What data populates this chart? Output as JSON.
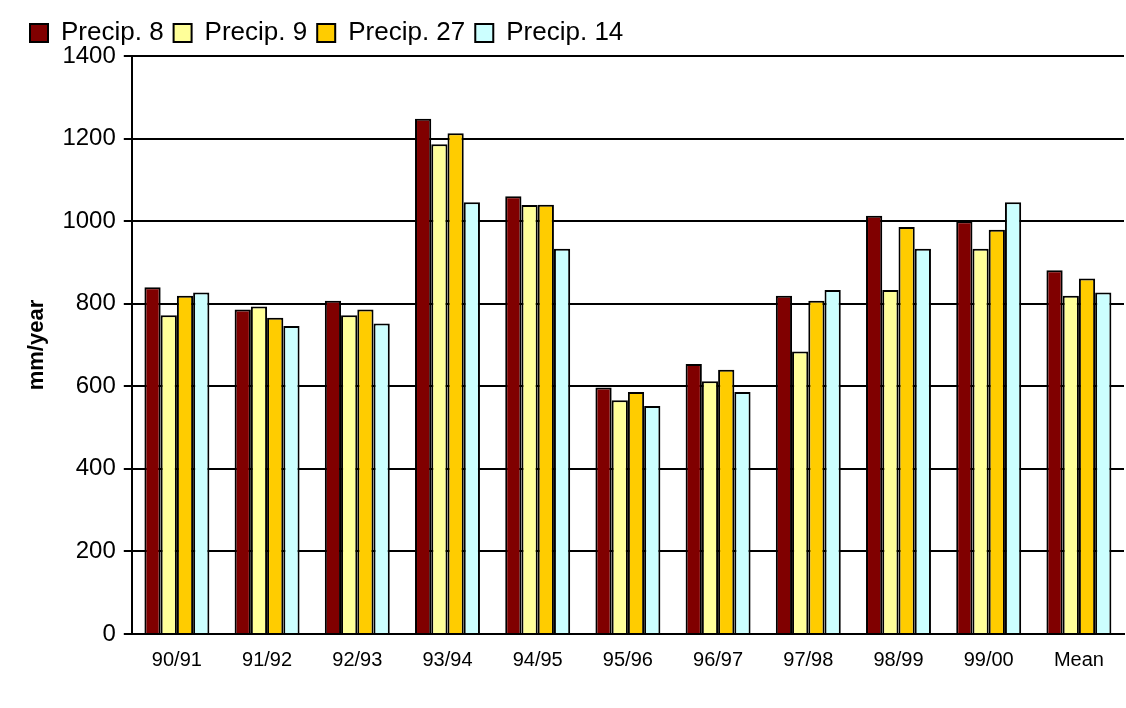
{
  "chart_data": {
    "type": "bar",
    "ylabel": "mm/year",
    "categories": [
      "90/91",
      "91/92",
      "92/93",
      "93/94",
      "94/95",
      "95/96",
      "96/97",
      "97/98",
      "98/99",
      "99/00",
      "Mean"
    ],
    "series": [
      {
        "name": "Precip. 8",
        "color": "#800000",
        "values": [
          840,
          786,
          807,
          1248,
          1060,
          597,
          654,
          819,
          1013,
          1000,
          881
        ]
      },
      {
        "name": "Precip. 9",
        "color": "#ffff99",
        "values": [
          772,
          793,
          772,
          1186,
          1039,
          566,
          612,
          684,
          833,
          933,
          819
        ]
      },
      {
        "name": "Precip. 27",
        "color": "#ffcc00",
        "values": [
          819,
          766,
          786,
          1213,
          1040,
          586,
          640,
          807,
          986,
          979,
          861
        ]
      },
      {
        "name": "Precip. 14",
        "color": "#ccffff",
        "values": [
          827,
          746,
          752,
          1046,
          933,
          552,
          586,
          833,
          933,
          1046,
          827
        ]
      }
    ],
    "ylim": [
      0,
      1400
    ],
    "yticks": [
      0,
      200,
      400,
      600,
      800,
      1000,
      1200,
      1400
    ],
    "grid": "y",
    "legend": "top"
  }
}
